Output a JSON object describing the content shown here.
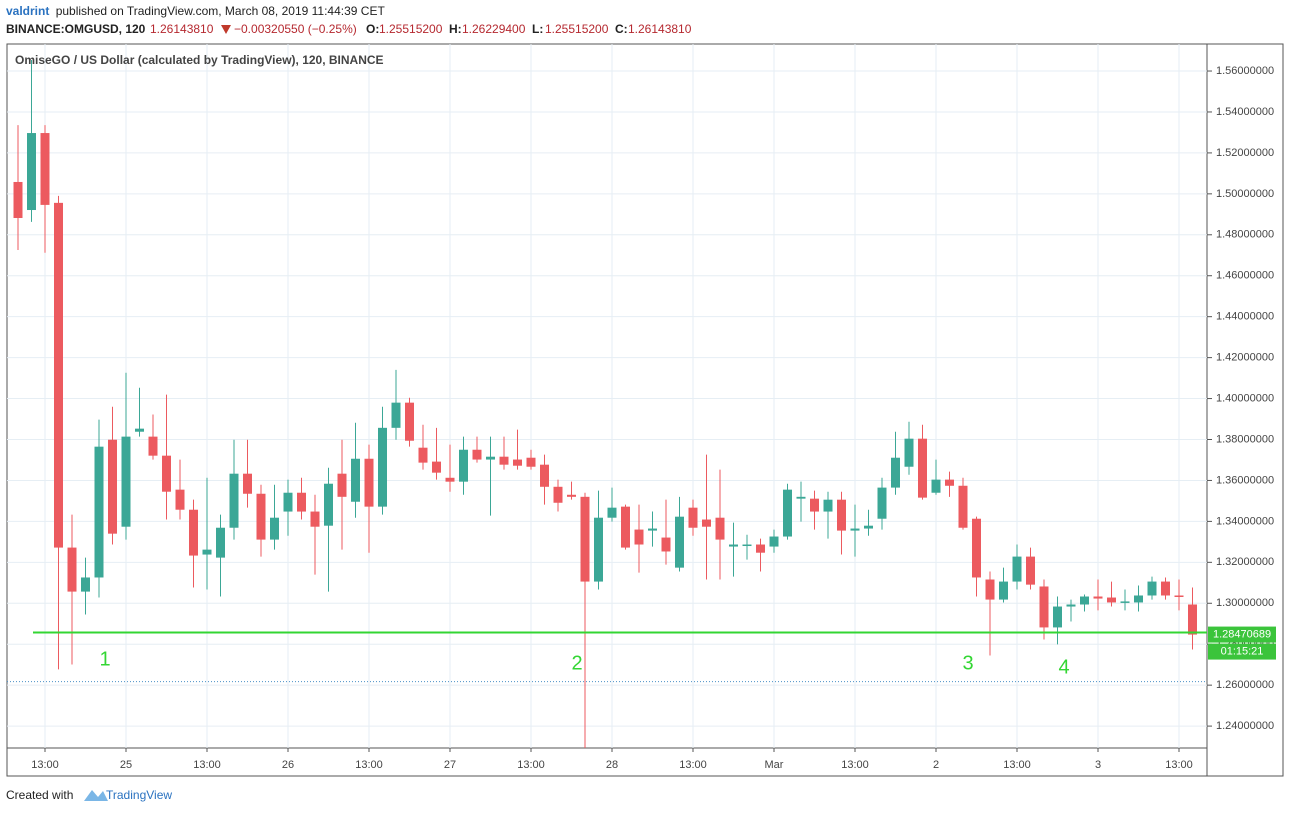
{
  "header": {
    "author": "valdrint",
    "published": "published on TradingView.com, March 08, 2019 11:44:39 CET",
    "symbol": "BINANCE:OMGUSD, 120",
    "last": "1.26143810",
    "change": "−0.00320550 (−0.25%)",
    "ohlc": [
      {
        "label": "O:",
        "value": "1.25515200"
      },
      {
        "label": "H:",
        "value": "1.26229400"
      },
      {
        "label": "L:",
        "value": "1.25515200"
      },
      {
        "label": "C:",
        "value": "1.26143810"
      }
    ]
  },
  "chart_data": {
    "type": "candlestick",
    "title": "OmiseGO / US Dollar (calculated by TradingView), 120, BINANCE",
    "categories": [
      null,
      null,
      "13:00",
      null,
      null,
      null,
      null,
      null,
      "25",
      null,
      null,
      null,
      null,
      null,
      "13:00",
      null,
      null,
      null,
      null,
      null,
      "26",
      null,
      null,
      null,
      null,
      null,
      "13:00",
      null,
      null,
      null,
      null,
      null,
      "27",
      null,
      null,
      null,
      null,
      null,
      "13:00",
      null,
      null,
      null,
      null,
      null,
      "28",
      null,
      null,
      null,
      null,
      null,
      "13:00",
      null,
      null,
      null,
      null,
      null,
      "Mar",
      null,
      null,
      null,
      null,
      null,
      "13:00",
      null,
      null,
      null,
      null,
      null,
      "2",
      null,
      null,
      null,
      null,
      null,
      "13:00",
      null,
      null,
      null,
      null,
      null,
      "3",
      null,
      null,
      null,
      null,
      null,
      "13:00",
      null
    ],
    "open": [
      1.5058,
      1.4921,
      1.5297,
      1.4956,
      1.3272,
      1.3057,
      1.3126,
      1.3799,
      1.3374,
      1.3838,
      1.3814,
      1.3721,
      1.3555,
      1.3457,
      1.3238,
      1.3223,
      1.3369,
      1.3633,
      1.3535,
      1.3311,
      1.3448,
      1.354,
      1.3448,
      1.3379,
      1.3633,
      1.3496,
      1.3706,
      1.3472,
      1.3857,
      1.398,
      1.376,
      1.3692,
      1.3613,
      1.3594,
      1.375,
      1.3702,
      1.3716,
      1.3702,
      1.3711,
      1.3677,
      1.3569,
      1.353,
      1.352,
      1.3106,
      1.3418,
      1.3472,
      1.336,
      1.3355,
      1.3321,
      1.3174,
      1.3467,
      1.3409,
      1.3418,
      1.3277,
      1.3282,
      1.3287,
      1.3277,
      1.3326,
      1.3511,
      1.3511,
      1.3448,
      1.3506,
      1.3355,
      1.3365,
      1.3413,
      1.3565,
      1.3667,
      1.3804,
      1.354,
      1.3604,
      1.3574,
      1.3413,
      1.3116,
      1.3018,
      1.3106,
      1.3228,
      1.3082,
      1.2882,
      1.2984,
      1.2994,
      1.3033,
      1.3028,
      1.3004,
      1.3004,
      1.3038,
      1.3106,
      1.3038,
      1.2994
    ],
    "high": [
      1.5336,
      1.5654,
      1.5336,
      1.499,
      1.3433,
      1.3223,
      1.3897,
      1.396,
      1.4126,
      1.4053,
      1.3922,
      1.4019,
      1.3702,
      1.3506,
      1.3613,
      1.3433,
      1.3799,
      1.3799,
      1.3579,
      1.3579,
      1.3604,
      1.3613,
      1.353,
      1.3662,
      1.3799,
      1.3882,
      1.3775,
      1.396,
      1.414,
      1.4004,
      1.3872,
      1.3857,
      1.3775,
      1.3814,
      1.3814,
      1.3814,
      1.3814,
      1.3848,
      1.375,
      1.3726,
      1.3604,
      1.3594,
      1.354,
      1.355,
      1.3565,
      1.3482,
      1.3482,
      1.3448,
      1.3506,
      1.352,
      1.3506,
      1.3726,
      1.3653,
      1.3394,
      1.3335,
      1.3316,
      1.336,
      1.3584,
      1.3594,
      1.355,
      1.3545,
      1.3545,
      1.3482,
      1.3457,
      1.3613,
      1.3838,
      1.3887,
      1.3872,
      1.3702,
      1.3643,
      1.3613,
      1.3423,
      1.3155,
      1.3174,
      1.3287,
      1.3272,
      1.3116,
      1.3033,
      1.3018,
      1.3043,
      1.3116,
      1.3106,
      1.3067,
      1.3087,
      1.313,
      1.3126,
      1.3116,
      1.3077
    ],
    "low": [
      1.4726,
      1.4863,
      1.4712,
      1.2677,
      1.2701,
      1.2945,
      1.3028,
      1.3287,
      1.3311,
      1.3814,
      1.3702,
      1.3409,
      1.3409,
      1.3077,
      1.3067,
      1.3033,
      1.3311,
      1.3467,
      1.3228,
      1.3262,
      1.333,
      1.3409,
      1.314,
      1.3057,
      1.3262,
      1.3418,
      1.3247,
      1.3433,
      1.3799,
      1.3765,
      1.3653,
      1.3604,
      1.3545,
      1.353,
      1.3687,
      1.3428,
      1.3653,
      1.3653,
      1.3653,
      1.3482,
      1.3448,
      1.3506,
      1.228,
      1.3067,
      1.3399,
      1.3262,
      1.315,
      1.3277,
      1.3189,
      1.3155,
      1.333,
      1.3116,
      1.3116,
      1.313,
      1.3213,
      1.3155,
      1.3247,
      1.3311,
      1.3399,
      1.336,
      1.3316,
      1.3238,
      1.3228,
      1.333,
      1.336,
      1.353,
      1.3628,
      1.3506,
      1.353,
      1.352,
      1.336,
      1.3033,
      1.2745,
      1.3004,
      1.3067,
      1.3067,
      1.2823,
      1.2799,
      1.2911,
      1.296,
      1.2965,
      1.2984,
      1.2965,
      1.296,
      1.3018,
      1.3018,
      1.2965,
      1.2774
    ],
    "close": [
      1.4882,
      1.5297,
      1.4946,
      1.3272,
      1.3057,
      1.3126,
      1.3765,
      1.334,
      1.3814,
      1.3853,
      1.3721,
      1.3545,
      1.3457,
      1.3233,
      1.3262,
      1.3369,
      1.3633,
      1.3535,
      1.3311,
      1.3418,
      1.354,
      1.3448,
      1.3374,
      1.3584,
      1.352,
      1.3706,
      1.3472,
      1.3857,
      1.398,
      1.3794,
      1.3687,
      1.3638,
      1.3594,
      1.375,
      1.3702,
      1.3716,
      1.3677,
      1.3672,
      1.3667,
      1.3569,
      1.3491,
      1.352,
      1.3106,
      1.3418,
      1.3467,
      1.3272,
      1.3287,
      1.3365,
      1.3253,
      1.3423,
      1.3369,
      1.3374,
      1.3311,
      1.3287,
      1.3287,
      1.3247,
      1.3326,
      1.3555,
      1.352,
      1.3448,
      1.3506,
      1.3355,
      1.3365,
      1.3379,
      1.3565,
      1.3711,
      1.3804,
      1.3516,
      1.3604,
      1.3574,
      1.3369,
      1.3126,
      1.3018,
      1.3106,
      1.3228,
      1.3091,
      1.2882,
      1.2984,
      1.2994,
      1.3033,
      1.3023,
      1.3004,
      1.3009,
      1.3038,
      1.3106,
      1.3038,
      1.3033,
      1.28470689
    ],
    "up_color": "#3ba796",
    "down_color": "#ec5a5f",
    "ylim": [
      1.2293,
      1.5732
    ],
    "yticks": [
      {
        "value": 1.24,
        "label": "1.24000000"
      },
      {
        "value": 1.26,
        "label": "1.26000000"
      },
      {
        "value": 1.28,
        "label": "1.28000000"
      },
      {
        "value": 1.3,
        "label": "1.30000000"
      },
      {
        "value": 1.32,
        "label": "1.32000000"
      },
      {
        "value": 1.34,
        "label": "1.34000000"
      },
      {
        "value": 1.36,
        "label": "1.36000000"
      },
      {
        "value": 1.38,
        "label": "1.38000000"
      },
      {
        "value": 1.4,
        "label": "1.40000000"
      },
      {
        "value": 1.42,
        "label": "1.42000000"
      },
      {
        "value": 1.44,
        "label": "1.44000000"
      },
      {
        "value": 1.46,
        "label": "1.46000000"
      },
      {
        "value": 1.48,
        "label": "1.48000000"
      },
      {
        "value": 1.5,
        "label": "1.50000000"
      },
      {
        "value": 1.52,
        "label": "1.52000000"
      },
      {
        "value": 1.54,
        "label": "1.54000000"
      },
      {
        "value": 1.56,
        "label": "1.56000000"
      }
    ],
    "grid": true,
    "horizontal_line": {
      "value": 1.2857,
      "color": "#33d633"
    },
    "dotted_line": {
      "value": 1.2617,
      "color": "#4a90c8"
    },
    "countdown": "01:15:21",
    "label_color": "#3bc43b",
    "annotations": [
      "1",
      "2",
      "3",
      "4"
    ],
    "annotation_color": "#33d633"
  },
  "footer": {
    "created": "Created with",
    "brand": "TradingView"
  }
}
